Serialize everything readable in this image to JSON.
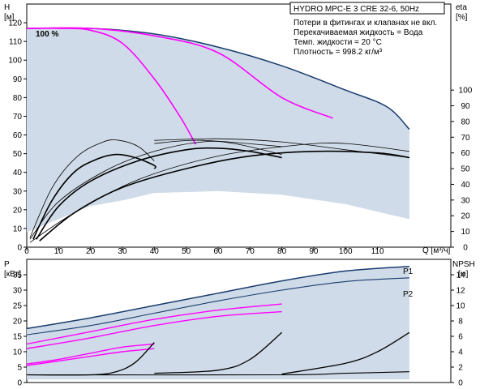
{
  "chart_data": [
    {
      "type": "line",
      "title": "HYDRO MPC-E 3 CRE 32-6, 50Hz",
      "notes": [
        "Потери в фитингах и клапанах не вкл.",
        "Перекачиваемая жидкость = Вода",
        "Темп. жидкости = 20 °C",
        "Плотность = 998.2 кг/м³"
      ],
      "left_axis": {
        "label": "H",
        "unit": "[м]",
        "ylim": [
          0,
          130
        ],
        "ticks": [
          0,
          10,
          20,
          30,
          40,
          50,
          60,
          70,
          80,
          90,
          100,
          110,
          120
        ]
      },
      "right_axis": {
        "label": "eta",
        "unit": "[%]",
        "ylim": [
          0,
          100
        ],
        "ticks": [
          0,
          10,
          20,
          30,
          40,
          50,
          60,
          70,
          80,
          90,
          100
        ]
      },
      "x_axis": {
        "label": "Q [м³/ч]",
        "xlim": [
          0,
          133
        ],
        "ticks": [
          0,
          10,
          20,
          30,
          40,
          50,
          60,
          70,
          80,
          90,
          100,
          110
        ]
      },
      "annotation": "100 %",
      "grid": false,
      "series": [
        {
          "kind": "head_envelope",
          "points": [
            [
              0,
              117
            ],
            [
              20,
              117
            ],
            [
              40,
              114
            ],
            [
              60,
              107
            ],
            [
              80,
              97
            ],
            [
              100,
              84
            ],
            [
              113,
              75
            ],
            [
              120,
              63
            ]
          ]
        },
        {
          "kind": "head_1pump_100",
          "points": [
            [
              0,
              117
            ],
            [
              10,
              117
            ],
            [
              20,
              116
            ],
            [
              30,
              109
            ],
            [
              40,
              90
            ],
            [
              48,
              70
            ],
            [
              53,
              55
            ]
          ]
        },
        {
          "kind": "head_2pump_100",
          "points": [
            [
              0,
              117
            ],
            [
              20,
              117
            ],
            [
              40,
              113
            ],
            [
              60,
              104
            ],
            [
              80,
              80
            ],
            [
              96,
              69
            ]
          ]
        },
        {
          "kind": "head_3pump_100_low",
          "points": [
            [
              0,
              117
            ],
            [
              60,
              117
            ],
            [
              80,
              107
            ],
            [
              100,
              84
            ],
            [
              120,
              62
            ]
          ]
        },
        {
          "kind": "eta_1pump",
          "points": [
            [
              2,
              5
            ],
            [
              8,
              30
            ],
            [
              15,
              48
            ],
            [
              22,
              56
            ],
            [
              28,
              59
            ],
            [
              34,
              57
            ],
            [
              40,
              52
            ],
            [
              40,
              50
            ]
          ]
        },
        {
          "kind": "eta_2pump",
          "points": [
            [
              3,
              5
            ],
            [
              10,
              26
            ],
            [
              20,
              42
            ],
            [
              35,
              55
            ],
            [
              50,
              62
            ],
            [
              60,
              63
            ],
            [
              70,
              61
            ],
            [
              80,
              57
            ]
          ]
        },
        {
          "kind": "eta_3pump",
          "points": [
            [
              4,
              4
            ],
            [
              15,
              22
            ],
            [
              30,
              38
            ],
            [
              50,
              50
            ],
            [
              70,
              58
            ],
            [
              90,
              61
            ],
            [
              110,
              60
            ],
            [
              120,
              57
            ]
          ]
        },
        {
          "kind": "eta_1pump_thin",
          "points": [
            [
              1,
              6
            ],
            [
              8,
              38
            ],
            [
              16,
              58
            ],
            [
              24,
              67
            ],
            [
              29,
              68
            ],
            [
              35,
              64
            ],
            [
              40,
              55
            ]
          ]
        },
        {
          "kind": "eta_2pump_thin",
          "points": [
            [
              1,
              5
            ],
            [
              10,
              29
            ],
            [
              25,
              49
            ],
            [
              40,
              61
            ],
            [
              55,
              67
            ],
            [
              65,
              66
            ],
            [
              80,
              59
            ]
          ]
        },
        {
          "kind": "eta_3pump_thin",
          "points": [
            [
              1,
              3
            ],
            [
              15,
              22
            ],
            [
              35,
              43
            ],
            [
              60,
              58
            ],
            [
              85,
              65
            ],
            [
              100,
              66
            ],
            [
              120,
              61
            ]
          ]
        },
        {
          "kind": "eta_flat_1",
          "points": [
            [
              40,
              66
            ],
            [
              55,
              68
            ],
            [
              80,
              64
            ]
          ]
        },
        {
          "kind": "eta_flat_2",
          "points": [
            [
              40,
              68
            ],
            [
              60,
              69
            ],
            [
              80,
              67
            ],
            [
              100,
              62
            ],
            [
              120,
              57
            ]
          ]
        }
      ]
    },
    {
      "type": "line",
      "left_axis": {
        "label": "P",
        "unit": "[кВт]",
        "ylim": [
          0,
          40
        ],
        "ticks": [
          0,
          5,
          10,
          15,
          20,
          25,
          30,
          35
        ]
      },
      "right_axis": {
        "label": "NPSH",
        "unit": "[м]",
        "ylim": [
          0,
          16
        ],
        "ticks": [
          0,
          2,
          4,
          6,
          8,
          10,
          12,
          14
        ]
      },
      "x_axis": {
        "xlim": [
          0,
          133
        ]
      },
      "legend": [
        "P1",
        "P2"
      ],
      "series": [
        {
          "kind": "P1_envelope",
          "points": [
            [
              0,
              17.5
            ],
            [
              20,
              21
            ],
            [
              40,
              25
            ],
            [
              60,
              29
            ],
            [
              80,
              33
            ],
            [
              100,
              36.2
            ],
            [
              120,
              37.7
            ]
          ]
        },
        {
          "kind": "P2_envelope",
          "points": [
            [
              0,
              15.5
            ],
            [
              20,
              18.5
            ],
            [
              40,
              22.5
            ],
            [
              60,
              26.5
            ],
            [
              80,
              30
            ],
            [
              100,
              32.8
            ],
            [
              120,
              34
            ]
          ]
        },
        {
          "kind": "P1_2pump",
          "points": [
            [
              0,
              12.5
            ],
            [
              20,
              16.5
            ],
            [
              40,
              20.5
            ],
            [
              60,
              23.5
            ],
            [
              80,
              25.5
            ]
          ]
        },
        {
          "kind": "P2_2pump",
          "points": [
            [
              0,
              11
            ],
            [
              20,
              14.5
            ],
            [
              40,
              18.5
            ],
            [
              60,
              21.5
            ],
            [
              80,
              23
            ]
          ]
        },
        {
          "kind": "P1_1pump",
          "points": [
            [
              0,
              6
            ],
            [
              10,
              7.5
            ],
            [
              20,
              9.5
            ],
            [
              30,
              11.5
            ],
            [
              40,
              12.5
            ]
          ]
        },
        {
          "kind": "P2_1pump",
          "points": [
            [
              0,
              5.5
            ],
            [
              10,
              7
            ],
            [
              20,
              8.5
            ],
            [
              30,
              10
            ],
            [
              40,
              11
            ]
          ]
        },
        {
          "kind": "NPSH_1pump",
          "points": [
            [
              0,
              1
            ],
            [
              20,
              1
            ],
            [
              28,
              1.4
            ],
            [
              34,
              2.6
            ],
            [
              40,
              5.2
            ]
          ]
        },
        {
          "kind": "NPSH_2pump",
          "points": [
            [
              40,
              1.2
            ],
            [
              60,
              1.6
            ],
            [
              70,
              3
            ],
            [
              80,
              6.5
            ]
          ]
        },
        {
          "kind": "NPSH_3pump",
          "points": [
            [
              80,
              1.1
            ],
            [
              100,
              2.5
            ],
            [
              110,
              4
            ],
            [
              120,
              6.5
            ]
          ]
        },
        {
          "kind": "NPSH_flat",
          "points": [
            [
              0,
              1
            ],
            [
              80,
              1
            ],
            [
              100,
              1.2
            ],
            [
              120,
              1.4
            ]
          ]
        }
      ]
    }
  ],
  "colors": {
    "envelope_fill": "#cfdbe8",
    "envelope_stroke": "#1a3c6e",
    "magenta": "#ff00ff",
    "black": "#000000"
  }
}
